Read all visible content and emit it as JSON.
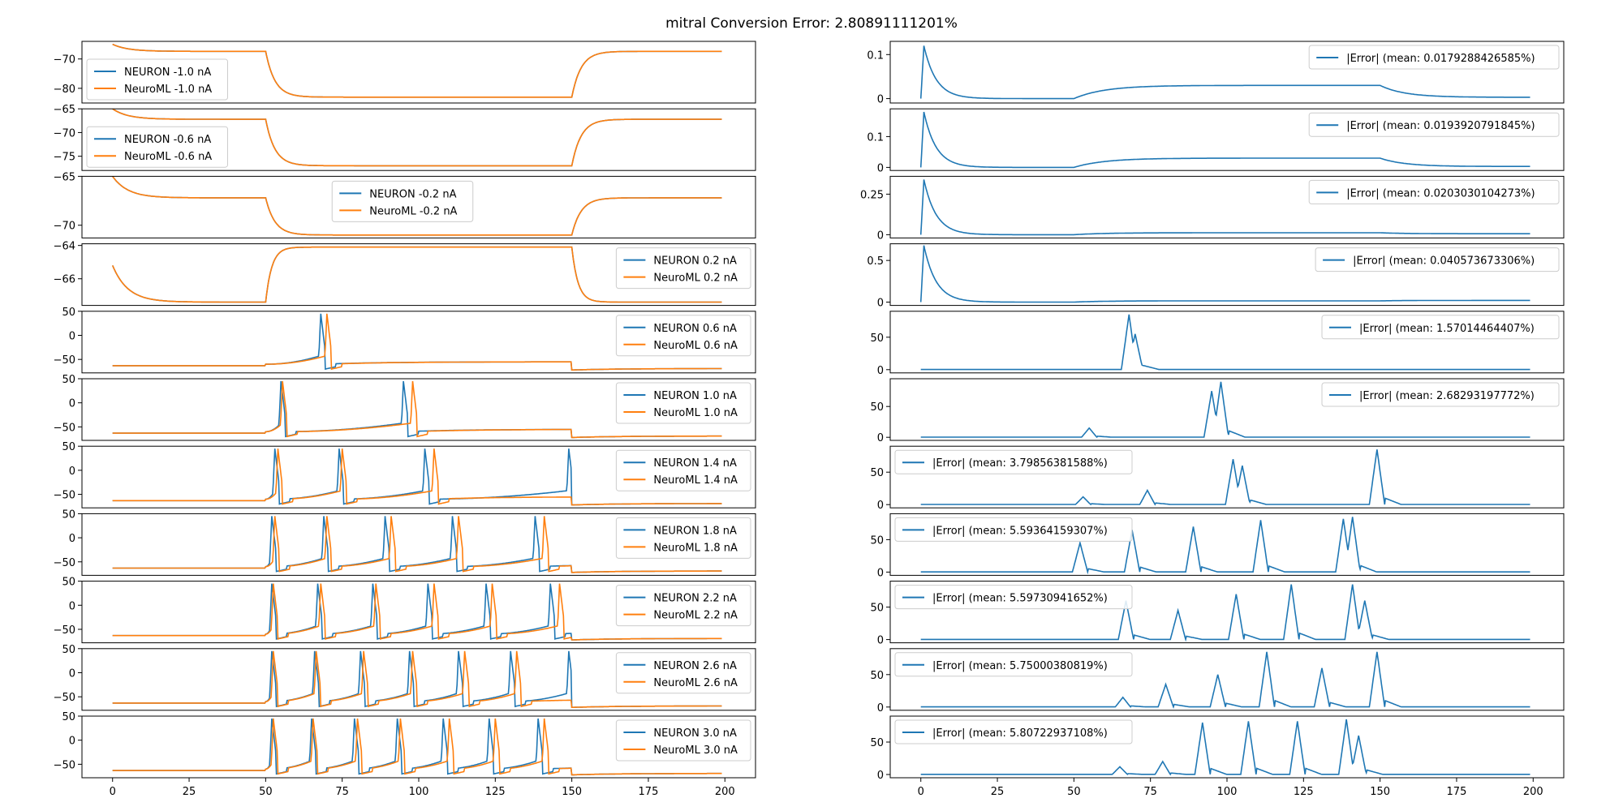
{
  "figure": {
    "title": "mitral Conversion Error: 2.80891111201%"
  },
  "colors": {
    "neuron": "#1f77b4",
    "neuroml": "#ff7f0e",
    "error": "#1f77b4"
  },
  "chart_data": {
    "type": "line",
    "title": "mitral Conversion Error: 2.80891111201%",
    "x_ticks": [
      0,
      25,
      50,
      75,
      100,
      125,
      150,
      175,
      200
    ],
    "xlim": [
      -10,
      210
    ],
    "stim_window": [
      50,
      150
    ],
    "panels": [
      {
        "current": "-1.0",
        "neuron_label": "NEURON -1.0 nA",
        "neuroml_label": "NeuroML -1.0 nA",
        "voltage_ylim": [
          -85,
          -64
        ],
        "voltage_yticks": [
          -70,
          -80
        ],
        "voltage_legend": "left",
        "trace": {
          "kind": "hyper",
          "rest": -65,
          "plateau": -67.4,
          "hyper": -83,
          "rebound": -67.4
        },
        "error_label": "|Error| (mean: 0.0179288426585%)",
        "error_ylim": [
          -0.01,
          0.13
        ],
        "error_yticks": [
          0.0,
          0.1
        ],
        "error_legend": "right",
        "error_profile": {
          "peak": 0.12,
          "mid": 0.03,
          "end": 0.003
        }
      },
      {
        "current": "-0.6",
        "neuron_label": "NEURON -0.6 nA",
        "neuroml_label": "NeuroML -0.6 nA",
        "voltage_ylim": [
          -78,
          -65
        ],
        "voltage_yticks": [
          -65,
          -70,
          -75
        ],
        "voltage_legend": "left",
        "trace": {
          "kind": "hyper",
          "rest": -65,
          "plateau": -67.2,
          "hyper": -77,
          "rebound": -67.2
        },
        "error_label": "|Error| (mean: 0.0193920791845%)",
        "error_ylim": [
          -0.01,
          0.19
        ],
        "error_yticks": [
          0.0,
          0.1
        ],
        "error_legend": "right",
        "error_profile": {
          "peak": 0.18,
          "mid": 0.03,
          "end": 0.003
        }
      },
      {
        "current": "-0.2",
        "neuron_label": "NEURON -0.2 nA",
        "neuroml_label": "NeuroML -0.2 nA",
        "voltage_ylim": [
          -71.3,
          -65
        ],
        "voltage_yticks": [
          -65,
          -70
        ],
        "voltage_legend": "center",
        "trace": {
          "kind": "hyper",
          "rest": -65,
          "plateau": -67.2,
          "hyper": -71,
          "rebound": -67.2
        },
        "error_label": "|Error| (mean: 0.0203030104273%)",
        "error_ylim": [
          -0.02,
          0.36
        ],
        "error_yticks": [
          0.0,
          0.25
        ],
        "error_legend": "right",
        "error_profile": {
          "peak": 0.34,
          "mid": 0.012,
          "end": 0.006
        }
      },
      {
        "current": "0.2",
        "neuron_label": "NEURON 0.2 nA",
        "neuroml_label": "NeuroML 0.2 nA",
        "voltage_ylim": [
          -67.6,
          -63.9
        ],
        "voltage_yticks": [
          -64,
          -66
        ],
        "voltage_legend": "right",
        "trace": {
          "kind": "depol",
          "rest": -65.2,
          "plateau": -67.4,
          "depol": -64.1,
          "rebound": -67.4
        },
        "error_label": "|Error| (mean: 0.040573673306%)",
        "error_ylim": [
          -0.04,
          0.7
        ],
        "error_yticks": [
          0.0,
          0.5
        ],
        "error_legend": "right",
        "error_profile": {
          "peak": 0.68,
          "mid": 0.015,
          "end": 0.02
        }
      },
      {
        "current": "0.6",
        "neuron_label": "NEURON 0.6 nA",
        "neuroml_label": "NeuroML 0.6 nA",
        "voltage_ylim": [
          -78,
          50
        ],
        "voltage_yticks": [
          50,
          0,
          -50
        ],
        "voltage_legend": "right",
        "trace": {
          "kind": "spikes",
          "neuron_spikes": [
            68
          ],
          "neuroml_spikes": [
            70
          ]
        },
        "error_label": "|Error| (mean: 1.57014464407%)",
        "error_ylim": [
          -5,
          90
        ],
        "error_yticks": [
          0,
          50
        ],
        "error_legend": "right",
        "error_spikes": [
          [
            68,
            85
          ],
          [
            70,
            55
          ]
        ]
      },
      {
        "current": "1.0",
        "neuron_label": "NEURON 1.0 nA",
        "neuroml_label": "NeuroML 1.0 nA",
        "voltage_ylim": [
          -78,
          50
        ],
        "voltage_yticks": [
          50,
          0,
          -50
        ],
        "voltage_legend": "right",
        "trace": {
          "kind": "spikes",
          "neuron_spikes": [
            55,
            95
          ],
          "neuroml_spikes": [
            55.5,
            98
          ]
        },
        "error_label": "|Error| (mean: 2.68293197772%)",
        "error_ylim": [
          -5,
          95
        ],
        "error_yticks": [
          0,
          50
        ],
        "error_legend": "right",
        "error_spikes": [
          [
            55,
            15
          ],
          [
            95,
            75
          ],
          [
            98,
            90
          ]
        ]
      },
      {
        "current": "1.4",
        "neuron_label": "NEURON 1.4 nA",
        "neuroml_label": "NeuroML 1.4 nA",
        "voltage_ylim": [
          -78,
          50
        ],
        "voltage_yticks": [
          50,
          0,
          -50
        ],
        "voltage_legend": "right",
        "trace": {
          "kind": "spikes",
          "neuron_spikes": [
            53,
            74,
            102,
            149
          ],
          "neuroml_spikes": [
            54,
            75,
            105
          ]
        },
        "error_label": "|Error| (mean: 3.79856381588%)",
        "error_ylim": [
          -5,
          90
        ],
        "error_yticks": [
          0,
          50
        ],
        "error_legend": "left",
        "error_spikes": [
          [
            53,
            12
          ],
          [
            74,
            22
          ],
          [
            102,
            70
          ],
          [
            105,
            60
          ],
          [
            149,
            85
          ]
        ]
      },
      {
        "current": "1.8",
        "neuron_label": "NEURON 1.8 nA",
        "neuroml_label": "NeuroML 1.8 nA",
        "voltage_ylim": [
          -78,
          50
        ],
        "voltage_yticks": [
          50,
          0,
          -50
        ],
        "voltage_legend": "right",
        "trace": {
          "kind": "spikes",
          "neuron_spikes": [
            52,
            69,
            89,
            111,
            138
          ],
          "neuroml_spikes": [
            53,
            70,
            91,
            113,
            141
          ]
        },
        "error_label": "|Error| (mean: 5.59364159307%)",
        "error_ylim": [
          -5,
          90
        ],
        "error_yticks": [
          0,
          50
        ],
        "error_legend": "left",
        "error_spikes": [
          [
            52,
            45
          ],
          [
            69,
            65
          ],
          [
            89,
            70
          ],
          [
            111,
            80
          ],
          [
            138,
            82
          ],
          [
            141,
            85
          ]
        ]
      },
      {
        "current": "2.2",
        "neuron_label": "NEURON 2.2 nA",
        "neuroml_label": "NeuroML 2.2 nA",
        "voltage_ylim": [
          -78,
          50
        ],
        "voltage_yticks": [
          50,
          0,
          -50
        ],
        "voltage_legend": "right",
        "trace": {
          "kind": "spikes",
          "neuron_spikes": [
            52,
            67,
            85,
            103,
            122,
            143
          ],
          "neuroml_spikes": [
            52.5,
            68,
            86,
            105,
            124,
            146
          ]
        },
        "error_label": "|Error| (mean: 5.59730941652%)",
        "error_ylim": [
          -5,
          90
        ],
        "error_yticks": [
          0,
          50
        ],
        "error_legend": "left",
        "error_spikes": [
          [
            67,
            60
          ],
          [
            84,
            45
          ],
          [
            103,
            70
          ],
          [
            121,
            85
          ],
          [
            141,
            85
          ],
          [
            145,
            60
          ]
        ]
      },
      {
        "current": "2.6",
        "neuron_label": "NEURON 2.6 nA",
        "neuroml_label": "NeuroML 2.6 nA",
        "voltage_ylim": [
          -78,
          50
        ],
        "voltage_yticks": [
          50,
          0,
          -50
        ],
        "voltage_legend": "right",
        "trace": {
          "kind": "spikes",
          "neuron_spikes": [
            52,
            66,
            81,
            97,
            113,
            130,
            149
          ],
          "neuroml_spikes": [
            52.5,
            66.5,
            82,
            98,
            115,
            132
          ]
        },
        "error_label": "|Error| (mean: 5.75000380819%)",
        "error_ylim": [
          -5,
          90
        ],
        "error_yticks": [
          0,
          50
        ],
        "error_legend": "left",
        "error_spikes": [
          [
            66,
            15
          ],
          [
            80,
            35
          ],
          [
            97,
            50
          ],
          [
            113,
            85
          ],
          [
            131,
            60
          ],
          [
            149,
            85
          ]
        ]
      },
      {
        "current": "3.0",
        "neuron_label": "NEURON 3.0 nA",
        "neuroml_label": "NeuroML 3.0 nA",
        "voltage_ylim": [
          -78,
          50
        ],
        "voltage_yticks": [
          50,
          0,
          -50
        ],
        "voltage_legend": "right",
        "trace": {
          "kind": "spikes",
          "neuron_spikes": [
            52,
            65,
            79,
            93,
            108,
            123,
            139
          ],
          "neuroml_spikes": [
            52.5,
            65.5,
            80,
            94,
            110,
            125,
            141
          ]
        },
        "error_label": "|Error| (mean: 5.80722937108%)",
        "error_ylim": [
          -5,
          90
        ],
        "error_yticks": [
          0,
          50
        ],
        "error_legend": "left",
        "error_spikes": [
          [
            65,
            12
          ],
          [
            79,
            20
          ],
          [
            92,
            80
          ],
          [
            107,
            82
          ],
          [
            123,
            82
          ],
          [
            139,
            85
          ],
          [
            143,
            60
          ]
        ]
      }
    ]
  }
}
